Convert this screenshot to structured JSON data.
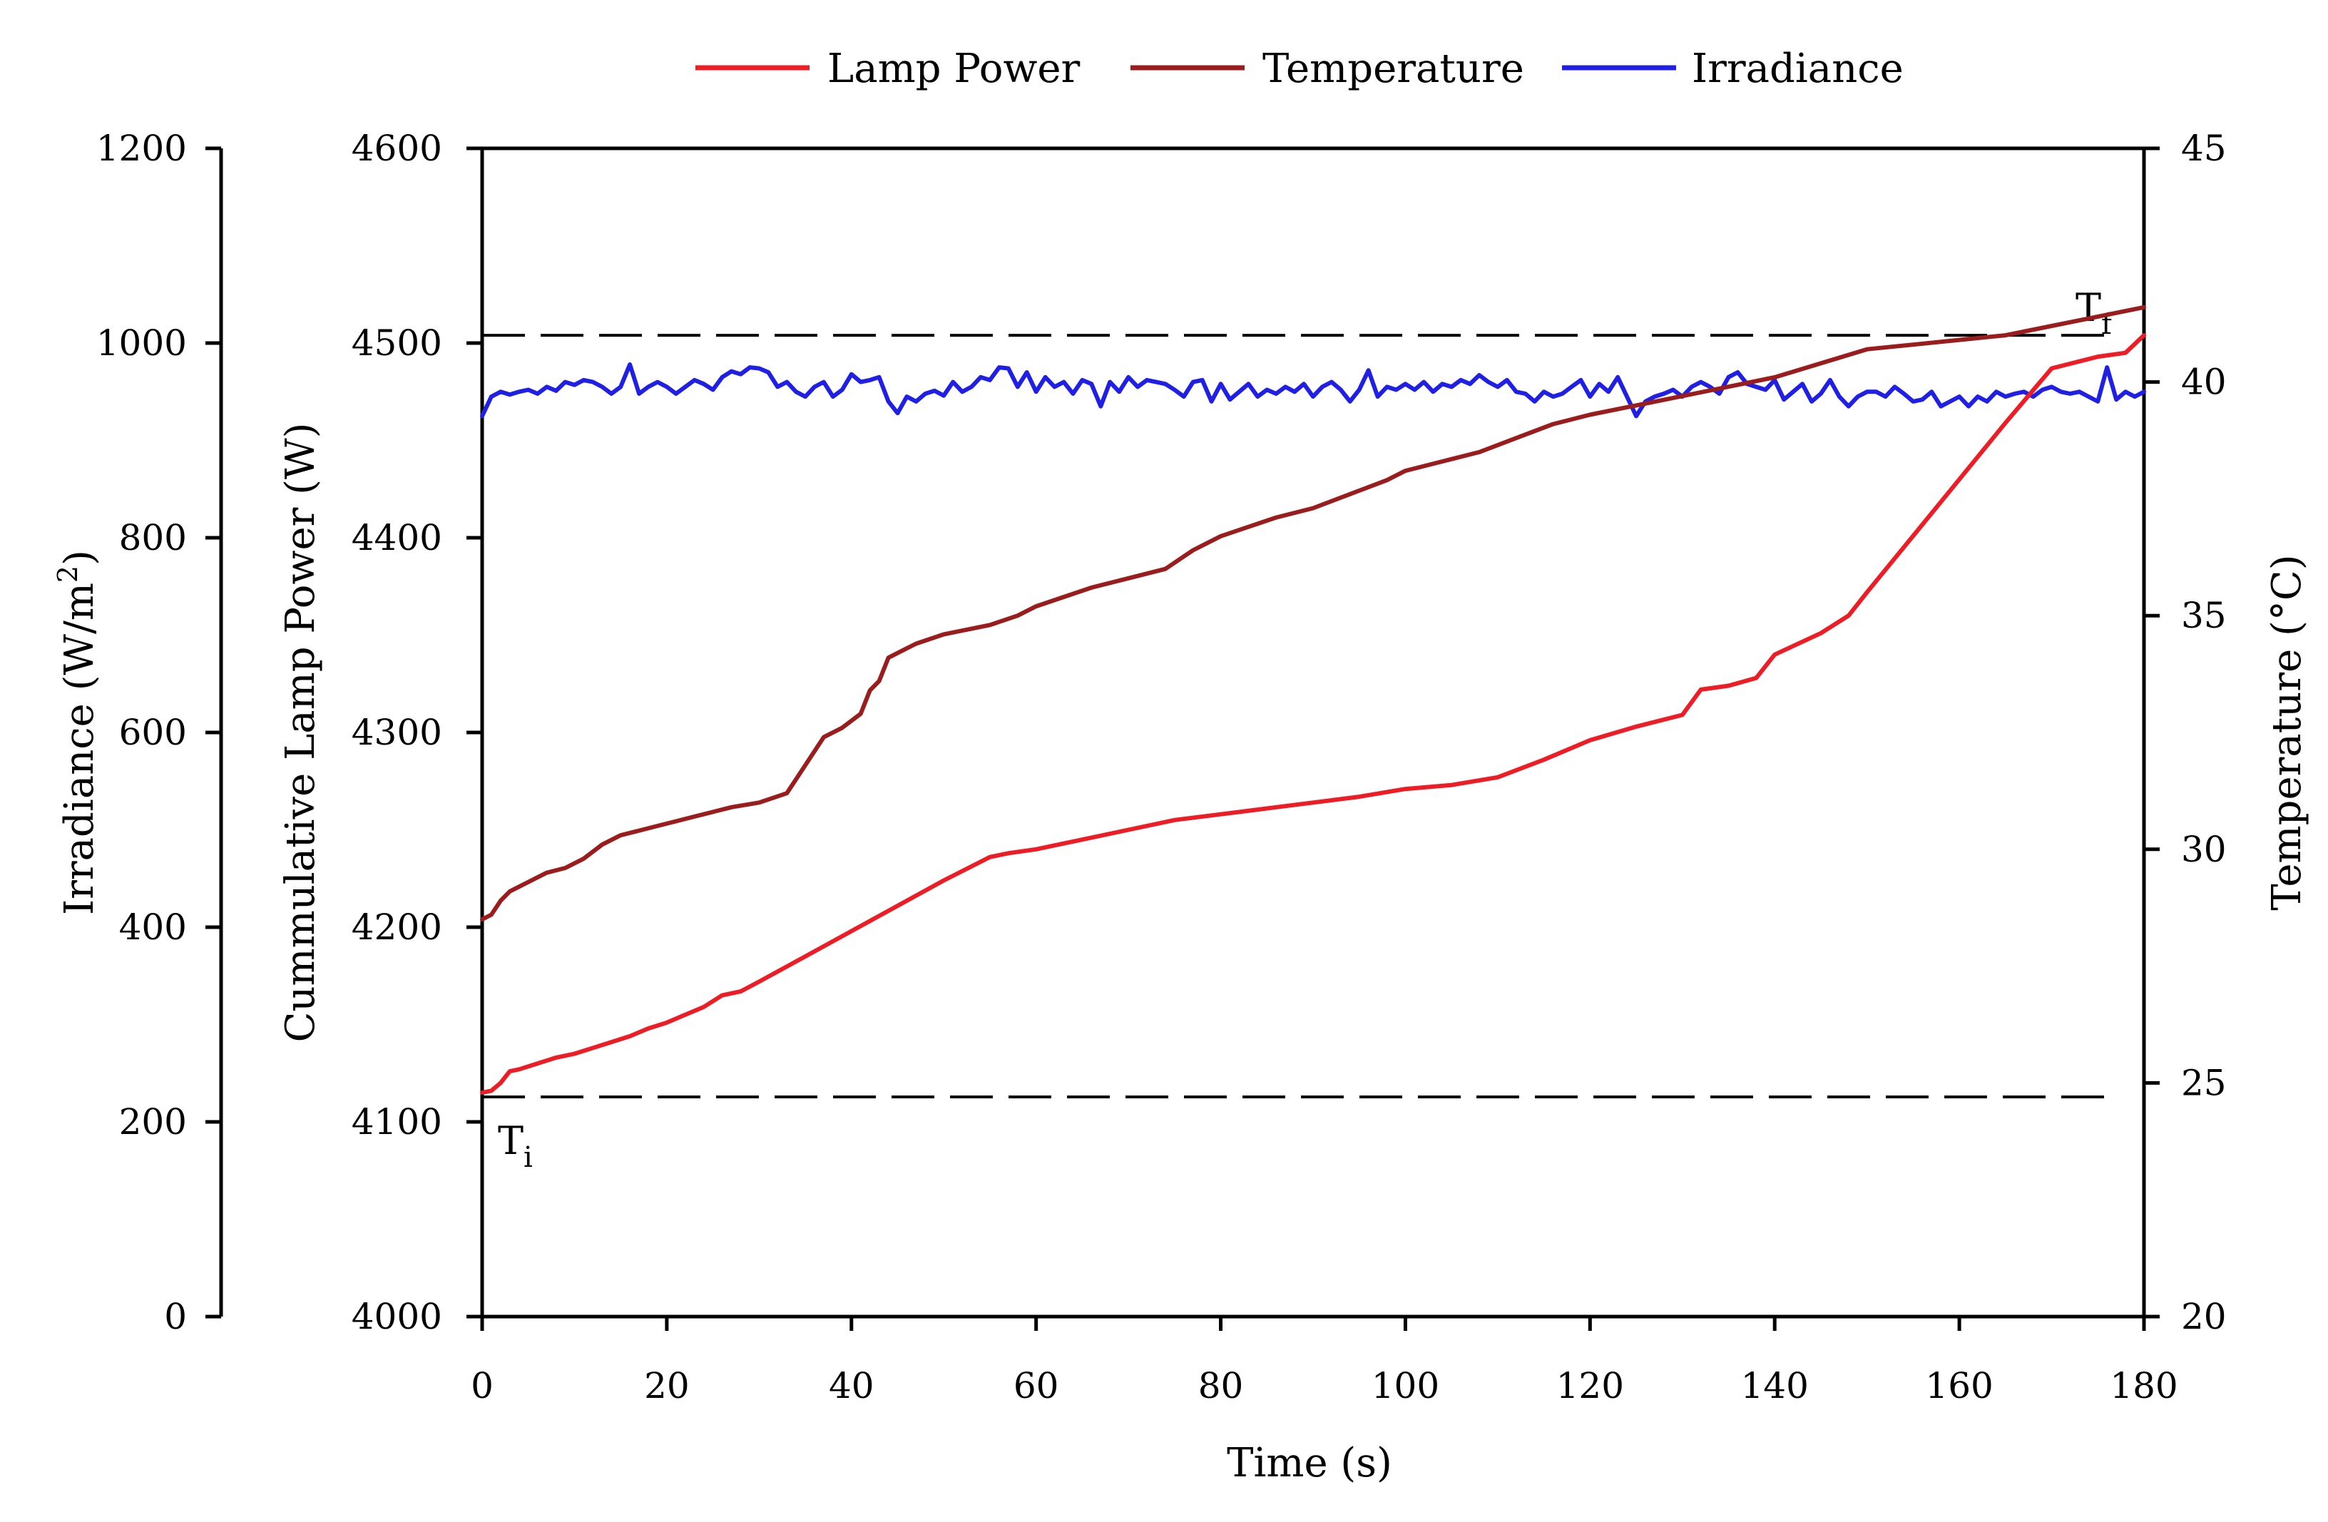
{
  "chart_data": {
    "type": "line",
    "title": "",
    "xlabel": "Time (s)",
    "x_ticks": [
      0,
      20,
      40,
      60,
      80,
      100,
      120,
      140,
      160,
      180
    ],
    "xlim": [
      0,
      180
    ],
    "axes": {
      "irradiance": {
        "label_main": "Irradiance (W/m",
        "label_sup": "2",
        "label_end": ")",
        "ylim": [
          0,
          1200
        ],
        "ticks": [
          0,
          200,
          400,
          600,
          800,
          1000,
          1200
        ],
        "position": "far-left"
      },
      "power": {
        "label": "Cummulative Lamp Power (W)",
        "ylim": [
          4000,
          4600
        ],
        "ticks": [
          4000,
          4100,
          4200,
          4300,
          4400,
          4500,
          4600
        ],
        "position": "left"
      },
      "temperature": {
        "label": "Temperature (°C)",
        "ylim": [
          20,
          45
        ],
        "ticks": [
          20,
          25,
          30,
          35,
          40,
          45
        ],
        "position": "right"
      }
    },
    "legend": {
      "placement": "top-center",
      "entries": [
        {
          "label": "Lamp Power",
          "color": "#ee1c24"
        },
        {
          "label": "Temperature",
          "color": "#9b1c1c"
        },
        {
          "label": "Irradiance",
          "color": "#1f1fe6"
        }
      ]
    },
    "reference_lines": [
      {
        "name": "Tf",
        "base": "T",
        "sub": "f",
        "axis": "temperature",
        "value": 41.0
      },
      {
        "name": "Ti",
        "base": "T",
        "sub": "i",
        "axis": "temperature",
        "value": 24.7
      }
    ],
    "series": [
      {
        "name": "Lamp Power",
        "axis": "power",
        "color": "#ee1c24",
        "x": [
          0,
          1,
          2,
          3,
          4,
          6,
          8,
          10,
          12,
          14,
          16,
          18,
          20,
          22,
          24,
          26,
          28,
          30,
          35,
          40,
          45,
          50,
          55,
          57,
          60,
          62,
          65,
          70,
          75,
          80,
          85,
          90,
          95,
          100,
          105,
          110,
          115,
          120,
          125,
          130,
          132,
          135,
          138,
          140,
          145,
          148,
          150,
          155,
          160,
          165,
          170,
          175,
          178,
          180
        ],
        "values": [
          4115,
          4116,
          4120,
          4126,
          4127,
          4130,
          4133,
          4135,
          4138,
          4141,
          4144,
          4148,
          4151,
          4155,
          4159,
          4165,
          4167,
          4172,
          4185,
          4198,
          4211,
          4224,
          4236,
          4238,
          4240,
          4242,
          4245,
          4250,
          4255,
          4258,
          4261,
          4264,
          4267,
          4271,
          4273,
          4277,
          4286,
          4296,
          4303,
          4309,
          4322,
          4324,
          4328,
          4340,
          4351,
          4360,
          4372,
          4401,
          4430,
          4459,
          4487,
          4493,
          4495,
          4504
        ]
      },
      {
        "name": "Temperature",
        "axis": "temperature",
        "color": "#9b1c1c",
        "x": [
          0,
          1,
          2,
          3,
          5,
          7,
          9,
          11,
          13,
          15,
          17,
          19,
          21,
          23,
          25,
          27,
          30,
          33,
          35,
          37,
          39,
          41,
          42,
          43,
          44,
          45,
          47,
          50,
          55,
          58,
          60,
          63,
          66,
          70,
          74,
          77,
          80,
          83,
          86,
          90,
          94,
          98,
          100,
          104,
          108,
          112,
          116,
          120,
          125,
          130,
          135,
          140,
          145,
          150,
          155,
          160,
          165,
          170,
          175,
          180
        ],
        "values": [
          28.5,
          28.6,
          28.9,
          29.1,
          29.3,
          29.5,
          29.6,
          29.8,
          30.1,
          30.3,
          30.4,
          30.5,
          30.6,
          30.7,
          30.8,
          30.9,
          31.0,
          31.2,
          31.8,
          32.4,
          32.6,
          32.9,
          33.4,
          33.6,
          34.1,
          34.2,
          34.4,
          34.6,
          34.8,
          35.0,
          35.2,
          35.4,
          35.6,
          35.8,
          36.0,
          36.4,
          36.7,
          36.9,
          37.1,
          37.3,
          37.6,
          37.9,
          38.1,
          38.3,
          38.5,
          38.8,
          39.1,
          39.3,
          39.5,
          39.7,
          39.9,
          40.1,
          40.4,
          40.7,
          40.8,
          40.9,
          41.0,
          41.2,
          41.4,
          41.6
        ]
      },
      {
        "name": "Irradiance",
        "axis": "irradiance",
        "color": "#1f1fe6",
        "x": [
          0,
          1,
          2,
          3,
          4,
          5,
          6,
          7,
          8,
          9,
          10,
          11,
          12,
          13,
          14,
          15,
          16,
          17,
          18,
          19,
          20,
          21,
          22,
          23,
          24,
          25,
          26,
          27,
          28,
          29,
          30,
          31,
          32,
          33,
          34,
          35,
          36,
          37,
          38,
          39,
          40,
          41,
          42,
          43,
          44,
          45,
          46,
          47,
          48,
          49,
          50,
          51,
          52,
          53,
          54,
          55,
          56,
          57,
          58,
          59,
          60,
          61,
          62,
          63,
          64,
          65,
          66,
          67,
          68,
          69,
          70,
          71,
          72,
          73,
          74,
          75,
          76,
          77,
          78,
          79,
          80,
          81,
          82,
          83,
          84,
          85,
          86,
          87,
          88,
          89,
          90,
          91,
          92,
          93,
          94,
          95,
          96,
          97,
          98,
          99,
          100,
          101,
          102,
          103,
          104,
          105,
          106,
          107,
          108,
          109,
          110,
          111,
          112,
          113,
          114,
          115,
          116,
          117,
          118,
          119,
          120,
          121,
          122,
          123,
          124,
          125,
          126,
          127,
          128,
          129,
          130,
          131,
          132,
          133,
          134,
          135,
          136,
          137,
          138,
          139,
          140,
          141,
          142,
          143,
          144,
          145,
          146,
          147,
          148,
          149,
          150,
          151,
          152,
          153,
          154,
          155,
          156,
          157,
          158,
          159,
          160,
          161,
          162,
          163,
          164,
          165,
          166,
          167,
          168,
          169,
          170,
          171,
          172,
          173,
          174,
          175,
          176,
          177,
          178,
          179,
          180
        ],
        "values": [
          925,
          945,
          950,
          947,
          950,
          952,
          948,
          955,
          951,
          960,
          957,
          962,
          960,
          955,
          948,
          955,
          978,
          948,
          955,
          960,
          955,
          948,
          955,
          962,
          958,
          952,
          965,
          971,
          968,
          975,
          974,
          970,
          955,
          960,
          950,
          945,
          955,
          960,
          945,
          952,
          968,
          960,
          962,
          965,
          940,
          928,
          945,
          940,
          948,
          951,
          946,
          960,
          950,
          955,
          965,
          962,
          975,
          974,
          955,
          970,
          950,
          965,
          955,
          960,
          948,
          962,
          958,
          935,
          960,
          950,
          965,
          955,
          962,
          960,
          958,
          952,
          945,
          960,
          962,
          940,
          958,
          942,
          950,
          958,
          945,
          952,
          948,
          955,
          950,
          958,
          945,
          955,
          960,
          952,
          940,
          952,
          972,
          945,
          955,
          952,
          958,
          952,
          960,
          950,
          958,
          955,
          962,
          958,
          967,
          960,
          955,
          962,
          950,
          948,
          940,
          950,
          945,
          948,
          955,
          962,
          945,
          958,
          950,
          965,
          945,
          925,
          940,
          945,
          948,
          952,
          945,
          955,
          960,
          955,
          948,
          965,
          970,
          958,
          955,
          952,
          962,
          942,
          950,
          958,
          940,
          948,
          962,
          945,
          935,
          945,
          950,
          950,
          945,
          955,
          948,
          940,
          942,
          950,
          935,
          940,
          945,
          935,
          945,
          940,
          950,
          945,
          948,
          950,
          945,
          952,
          955,
          950,
          948,
          950,
          945,
          940,
          975,
          942,
          950,
          945,
          950
        ]
      }
    ]
  }
}
